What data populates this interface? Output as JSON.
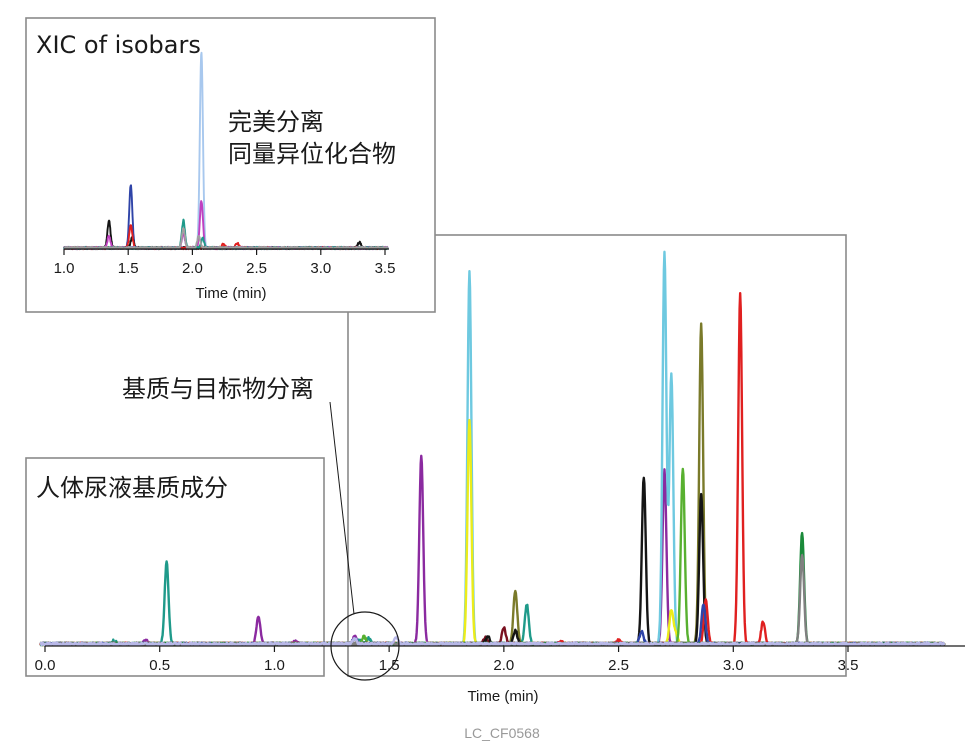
{
  "labels": {
    "inset_title": "XIC of isobars",
    "inset_annotation_1": "完美分离",
    "inset_annotation_2": "同量异位化合物",
    "matrix_annotation": "基质与目标物分离",
    "urine_title": "人体尿液基质成分",
    "figure_id": "LC_CF0568"
  },
  "chart_data": [
    {
      "id": "main",
      "type": "line",
      "xlabel": "Time (min)",
      "ylabel": "",
      "xlim": [
        0.0,
        3.9
      ],
      "xticks": [
        "0.0",
        "0.5",
        "1.0",
        "1.5",
        "2.0",
        "2.5",
        "3.0",
        "3.5"
      ],
      "series": [
        {
          "color": "#1f9a8a",
          "peaks": [
            [
              0.53,
              0.66
            ],
            [
              2.1,
              0.32
            ],
            [
              1.41,
              0.05
            ],
            [
              1.37,
              0.03
            ],
            [
              0.3,
              0.03
            ]
          ]
        },
        {
          "color": "#8b2aa0",
          "peaks": [
            [
              0.93,
              0.22
            ],
            [
              1.64,
              1.52
            ],
            [
              0.44,
              0.03
            ],
            [
              1.09,
              0.02
            ],
            [
              1.35,
              0.06
            ],
            [
              2.7,
              1.4
            ]
          ]
        },
        {
          "color": "#6ec9e0",
          "peaks": [
            [
              1.85,
              3.0
            ],
            [
              2.7,
              3.15
            ],
            [
              2.73,
              2.18
            ]
          ]
        },
        {
          "color": "#ecec1a",
          "peaks": [
            [
              1.85,
              1.8
            ],
            [
              2.73,
              0.27
            ],
            [
              2.75,
              0.08
            ]
          ]
        },
        {
          "color": "#7a7a2a",
          "peaks": [
            [
              2.05,
              0.43
            ],
            [
              2.86,
              2.58
            ]
          ]
        },
        {
          "color": "#7a1020",
          "peaks": [
            [
              2.0,
              0.13
            ],
            [
              1.92,
              0.05
            ]
          ]
        },
        {
          "color": "#151515",
          "peaks": [
            [
              1.93,
              0.06
            ],
            [
              2.05,
              0.11
            ],
            [
              2.61,
              1.35
            ],
            [
              2.86,
              1.2
            ]
          ]
        },
        {
          "color": "#58b030",
          "peaks": [
            [
              2.78,
              1.42
            ],
            [
              1.39,
              0.06
            ]
          ]
        },
        {
          "color": "#e02020",
          "peaks": [
            [
              3.03,
              2.82
            ],
            [
              3.13,
              0.18
            ],
            [
              2.88,
              0.36
            ],
            [
              2.5,
              0.03
            ],
            [
              2.25,
              0.02
            ]
          ]
        },
        {
          "color": "#2f44a8",
          "peaks": [
            [
              2.6,
              0.1
            ],
            [
              2.87,
              0.32
            ],
            [
              1.35,
              0.05
            ]
          ]
        },
        {
          "color": "#1a8a3a",
          "peaks": [
            [
              3.3,
              0.9
            ]
          ]
        },
        {
          "color": "#808080",
          "peaks": [
            [
              3.3,
              0.72
            ]
          ]
        },
        {
          "color": "#b8b8e8",
          "peaks": [
            [
              1.53,
              0.06
            ],
            [
              1.35,
              0.04
            ]
          ]
        }
      ]
    },
    {
      "id": "inset",
      "type": "line",
      "title": "XIC of isobars",
      "xlabel": "Time (min)",
      "xlim": [
        1.0,
        3.5
      ],
      "xticks": [
        "1.0",
        "1.5",
        "2.0",
        "2.5",
        "3.0",
        "3.5"
      ],
      "series": [
        {
          "color": "#a8c8ee",
          "peaks": [
            [
              2.07,
              1.0
            ]
          ]
        },
        {
          "color": "#2f44a8",
          "peaks": [
            [
              1.52,
              0.32
            ]
          ]
        },
        {
          "color": "#151515",
          "peaks": [
            [
              1.35,
              0.14
            ],
            [
              1.53,
              0.05
            ],
            [
              3.3,
              0.03
            ]
          ]
        },
        {
          "color": "#e02020",
          "peaks": [
            [
              1.52,
              0.12
            ],
            [
              2.24,
              0.02
            ],
            [
              2.35,
              0.025
            ]
          ]
        },
        {
          "color": "#c040c0",
          "peaks": [
            [
              2.07,
              0.24
            ],
            [
              1.35,
              0.06
            ],
            [
              1.93,
              0.07
            ]
          ]
        },
        {
          "color": "#1f9a8a",
          "peaks": [
            [
              1.93,
              0.14
            ],
            [
              2.08,
              0.05
            ]
          ]
        },
        {
          "color": "#a0a0a0",
          "peaks": [
            [
              1.93,
              0.1
            ],
            [
              2.05,
              0.06
            ]
          ]
        }
      ]
    }
  ]
}
